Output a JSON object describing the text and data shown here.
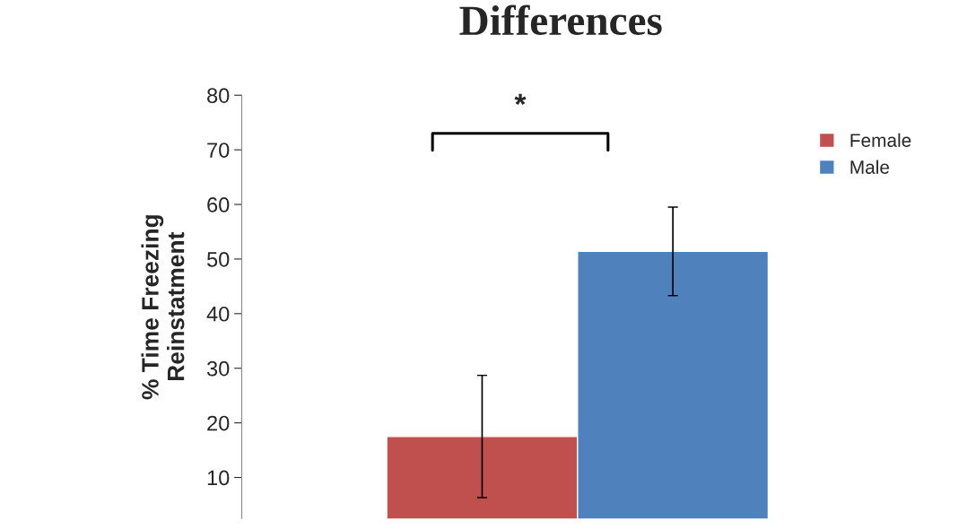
{
  "chart_data": {
    "type": "bar",
    "title": "Differences",
    "ylabel": "% Time Freezing\nReinstatment",
    "categories": [
      null
    ],
    "series": [
      {
        "name": "Female",
        "color": "#c0504d",
        "values": [
          17.5
        ],
        "errors": [
          11.2
        ]
      },
      {
        "name": "Male",
        "color": "#4f81bd",
        "values": [
          51.4
        ],
        "errors": [
          8.1
        ]
      }
    ],
    "ylim": [
      2.5,
      80
    ],
    "yticks": [
      10,
      20,
      30,
      40,
      50,
      60,
      70,
      80
    ],
    "annotations": [
      "*"
    ],
    "grid": false,
    "legend": "right"
  }
}
